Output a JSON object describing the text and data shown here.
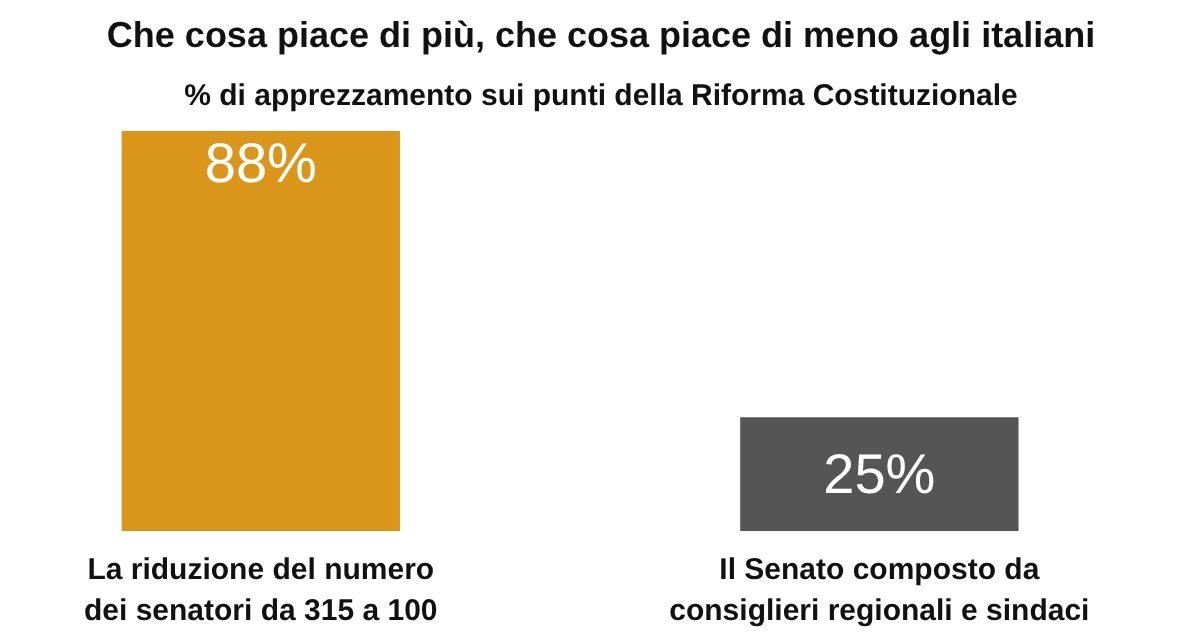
{
  "chart_data": {
    "type": "bar",
    "title": "Che cosa piace di più, che cosa piace di meno agli italiani",
    "subtitle": "% di apprezzamento sui punti della Riforma Costituzionale",
    "categories": [
      "La riduzione del numero\ndei senatori da 315 a 100",
      "Il Senato composto da\nconsiglieri regionali e sindaci"
    ],
    "values": [
      88,
      25
    ],
    "colors": [
      "#d9961a",
      "#555555"
    ],
    "value_labels": [
      "88%",
      "25%"
    ],
    "grid": false
  }
}
